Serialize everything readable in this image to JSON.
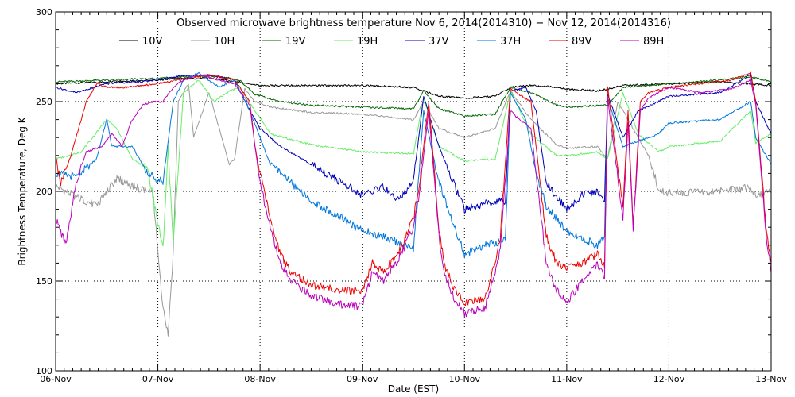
{
  "chart_data": {
    "type": "line",
    "title": "Observed microwave brightness temperature Nov  6, 2014(2014310) − Nov 12, 2014(2014316)",
    "xlabel": "Date (EST)",
    "ylabel": "Brightness Temperature, Deg K",
    "xlim": [
      0,
      7
    ],
    "ylim": [
      100,
      300
    ],
    "grid": true,
    "legend_position": "top",
    "x_unit": "days since 06-Nov 00:00 EST",
    "xticks": [
      {
        "value": 0,
        "label": "06-Nov"
      },
      {
        "value": 1,
        "label": "07-Nov"
      },
      {
        "value": 2,
        "label": "08-Nov"
      },
      {
        "value": 3,
        "label": "09-Nov"
      },
      {
        "value": 4,
        "label": "10-Nov"
      },
      {
        "value": 5,
        "label": "11-Nov"
      },
      {
        "value": 6,
        "label": "12-Nov"
      },
      {
        "value": 7,
        "label": "13-Nov"
      }
    ],
    "yticks": [
      {
        "value": 100,
        "label": "100"
      },
      {
        "value": 150,
        "label": "150"
      },
      {
        "value": 200,
        "label": "200"
      },
      {
        "value": 250,
        "label": "250"
      },
      {
        "value": 300,
        "label": "300"
      }
    ],
    "series": [
      {
        "name": "10V",
        "color": "#000000",
        "x": [
          0,
          0.5,
          1.0,
          1.2,
          1.5,
          1.8,
          2.0,
          2.5,
          3.0,
          3.5,
          3.6,
          3.75,
          4.0,
          4.3,
          4.45,
          4.65,
          4.9,
          5.0,
          5.3,
          5.4,
          5.55,
          6.0,
          6.5,
          7.0
        ],
        "y": [
          260,
          261,
          262,
          263,
          263,
          261,
          259,
          259,
          259,
          258,
          256,
          253,
          252,
          253,
          258,
          259,
          258,
          257,
          256,
          257,
          259,
          260,
          261,
          259
        ]
      },
      {
        "name": "10H",
        "color": "#999999",
        "x": [
          0,
          0.2,
          0.4,
          0.6,
          0.8,
          0.95,
          1.05,
          1.1,
          1.15,
          1.2,
          1.3,
          1.35,
          1.5,
          1.6,
          1.7,
          1.75,
          1.85,
          1.95,
          2.1,
          2.5,
          3.0,
          3.5,
          3.6,
          3.75,
          4.0,
          4.3,
          4.45,
          4.65,
          4.9,
          5.0,
          5.3,
          5.4,
          5.5,
          5.6,
          5.8,
          5.9,
          6.0,
          6.5,
          6.8,
          6.85,
          7.0
        ],
        "y": [
          203,
          197,
          192,
          207,
          202,
          200,
          135,
          120,
          165,
          250,
          260,
          230,
          255,
          235,
          215,
          218,
          257,
          250,
          247,
          244,
          243,
          240,
          250,
          235,
          230,
          235,
          256,
          240,
          226,
          224,
          225,
          218,
          250,
          240,
          220,
          201,
          199,
          200,
          202,
          197,
          200
        ]
      },
      {
        "name": "19V",
        "color": "#006600",
        "x": [
          0,
          0.5,
          1.0,
          1.3,
          1.6,
          1.8,
          1.95,
          2.2,
          2.5,
          3.0,
          3.5,
          3.6,
          3.75,
          4.0,
          4.3,
          4.45,
          4.65,
          4.9,
          5.0,
          5.4,
          5.55,
          6.0,
          6.5,
          6.8,
          7.0
        ],
        "y": [
          261,
          262,
          263,
          264,
          264,
          262,
          254,
          250,
          248,
          247,
          246,
          256,
          246,
          242,
          243,
          258,
          255,
          248,
          247,
          248,
          258,
          260,
          262,
          264,
          261
        ]
      },
      {
        "name": "19H",
        "color": "#66ee66",
        "x": [
          0,
          0.25,
          0.5,
          0.6,
          0.75,
          0.9,
          1.05,
          1.1,
          1.15,
          1.25,
          1.4,
          1.55,
          1.7,
          1.8,
          1.95,
          2.1,
          2.5,
          3.0,
          3.5,
          3.6,
          3.75,
          4.0,
          4.3,
          4.45,
          4.65,
          4.9,
          5.0,
          5.3,
          5.4,
          5.55,
          5.7,
          5.9,
          6.0,
          6.5,
          6.8,
          6.85,
          7.0
        ],
        "y": [
          218,
          222,
          240,
          235,
          218,
          212,
          168,
          225,
          170,
          255,
          262,
          250,
          256,
          258,
          245,
          232,
          226,
          222,
          221,
          252,
          225,
          217,
          218,
          256,
          232,
          220,
          220,
          222,
          218,
          255,
          232,
          222,
          225,
          228,
          245,
          227,
          232
        ]
      },
      {
        "name": "37V",
        "color": "#0000bb",
        "x": [
          0,
          0.2,
          0.5,
          0.8,
          1.0,
          1.2,
          1.5,
          1.75,
          1.9,
          2.0,
          2.2,
          2.5,
          2.8,
          3.0,
          3.2,
          3.35,
          3.5,
          3.6,
          3.75,
          4.0,
          4.2,
          4.4,
          4.45,
          4.6,
          4.7,
          4.8,
          5.0,
          5.15,
          5.3,
          5.37,
          5.4,
          5.55,
          5.7,
          5.9,
          6.0,
          6.5,
          6.8,
          6.85,
          7.0
        ],
        "y": [
          258,
          255,
          260,
          261,
          262,
          264,
          265,
          262,
          245,
          235,
          225,
          215,
          205,
          198,
          202,
          196,
          205,
          253,
          225,
          190,
          193,
          195,
          256,
          258,
          245,
          205,
          190,
          198,
          200,
          196,
          254,
          230,
          245,
          250,
          253,
          255,
          265,
          250,
          232
        ]
      },
      {
        "name": "37H",
        "color": "#0077dd",
        "x": [
          0,
          0.2,
          0.4,
          0.5,
          0.55,
          0.75,
          0.9,
          1.05,
          1.15,
          1.25,
          1.4,
          1.6,
          1.75,
          1.9,
          2.1,
          2.5,
          3.0,
          3.2,
          3.5,
          3.6,
          3.75,
          4.0,
          4.2,
          4.4,
          4.45,
          4.6,
          4.7,
          4.8,
          5.0,
          5.3,
          5.37,
          5.4,
          5.55,
          5.7,
          5.9,
          6.0,
          6.5,
          6.8,
          6.85,
          7.0
        ],
        "y": [
          210,
          208,
          218,
          240,
          225,
          225,
          210,
          205,
          250,
          262,
          266,
          258,
          262,
          245,
          215,
          195,
          178,
          175,
          168,
          245,
          205,
          165,
          170,
          173,
          255,
          240,
          210,
          192,
          178,
          170,
          175,
          252,
          225,
          228,
          232,
          238,
          240,
          250,
          230,
          215
        ]
      },
      {
        "name": "89V",
        "color": "#ee0000",
        "x": [
          0,
          0.05,
          0.15,
          0.3,
          0.4,
          0.5,
          0.7,
          1.0,
          1.3,
          1.5,
          1.75,
          1.9,
          1.95,
          2.0,
          2.1,
          2.2,
          2.3,
          2.5,
          2.75,
          3.0,
          3.1,
          3.2,
          3.35,
          3.5,
          3.55,
          3.65,
          3.75,
          3.8,
          3.9,
          4.0,
          4.2,
          4.3,
          4.35,
          4.45,
          4.5,
          4.65,
          4.8,
          4.9,
          5.0,
          5.15,
          5.3,
          5.37,
          5.4,
          5.55,
          5.6,
          5.65,
          5.72,
          5.8,
          6.0,
          6.3,
          6.6,
          6.8,
          6.85,
          6.95,
          7.0
        ],
        "y": [
          220,
          205,
          220,
          250,
          260,
          258,
          258,
          260,
          263,
          265,
          262,
          250,
          225,
          210,
          185,
          165,
          155,
          148,
          145,
          144,
          160,
          155,
          165,
          185,
          200,
          250,
          180,
          160,
          145,
          138,
          140,
          160,
          175,
          258,
          255,
          250,
          175,
          160,
          158,
          160,
          165,
          158,
          258,
          190,
          245,
          180,
          250,
          255,
          258,
          260,
          262,
          266,
          250,
          180,
          160
        ]
      },
      {
        "name": "89H",
        "color": "#bb00bb",
        "x": [
          0,
          0.1,
          0.2,
          0.3,
          0.45,
          0.55,
          0.65,
          0.75,
          0.85,
          0.95,
          1.05,
          1.15,
          1.25,
          1.4,
          1.6,
          1.75,
          1.9,
          1.95,
          2.0,
          2.1,
          2.2,
          2.3,
          2.5,
          2.75,
          3.0,
          3.1,
          3.2,
          3.35,
          3.5,
          3.55,
          3.65,
          3.75,
          3.8,
          3.9,
          4.0,
          4.2,
          4.3,
          4.35,
          4.45,
          4.5,
          4.65,
          4.8,
          4.9,
          5.0,
          5.15,
          5.3,
          5.37,
          5.4,
          5.55,
          5.6,
          5.65,
          5.72,
          5.8,
          6.0,
          6.3,
          6.6,
          6.8,
          6.85,
          6.95,
          7.0
        ],
        "y": [
          185,
          170,
          205,
          222,
          225,
          232,
          225,
          240,
          248,
          250,
          250,
          258,
          262,
          265,
          262,
          260,
          248,
          225,
          205,
          180,
          160,
          150,
          142,
          137,
          136,
          155,
          150,
          162,
          180,
          195,
          245,
          175,
          155,
          140,
          132,
          135,
          155,
          168,
          245,
          242,
          235,
          160,
          145,
          138,
          150,
          160,
          152,
          252,
          185,
          238,
          178,
          245,
          252,
          258,
          255,
          257,
          262,
          248,
          175,
          155
        ]
      }
    ]
  }
}
